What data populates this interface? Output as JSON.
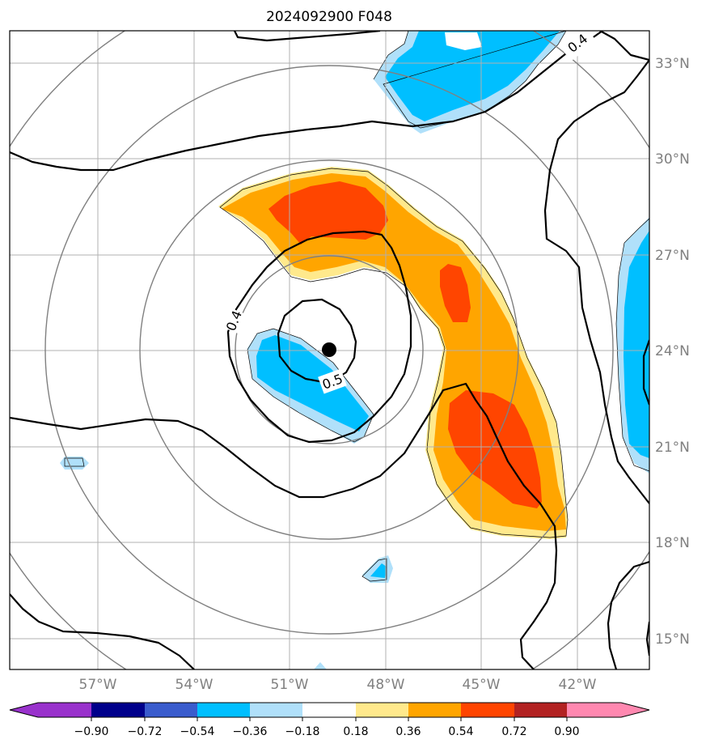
{
  "chart_data": {
    "type": "map",
    "title": "2024092900 F048",
    "lon_ticks": [
      "57°W",
      "54°W",
      "51°W",
      "48°W",
      "45°W",
      "42°W"
    ],
    "lat_ticks": [
      "33°N",
      "30°N",
      "27°N",
      "24°N",
      "21°N",
      "18°N",
      "15°N"
    ],
    "lon_range": [
      -59.8,
      -39.8
    ],
    "lat_range": [
      14.1,
      34.1
    ],
    "grid": true,
    "storm_center": {
      "lon": -49.7,
      "lat": 24.0
    },
    "range_rings": 4,
    "contour_labels": [
      "0.4",
      "0.4",
      "0.5"
    ],
    "colorbar": {
      "ticks": [
        "−0.90",
        "−0.72",
        "−0.54",
        "−0.36",
        "−0.18",
        "0.18",
        "0.36",
        "0.54",
        "0.72",
        "0.90"
      ],
      "colors": [
        "#9932cc",
        "#00008b",
        "#3a5ccd",
        "#00bfff",
        "#b0e0fa",
        "#ffffff",
        "#ffe98c",
        "#ffa500",
        "#ff4500",
        "#b22222",
        "#ff88b0"
      ],
      "extend": "both"
    }
  }
}
